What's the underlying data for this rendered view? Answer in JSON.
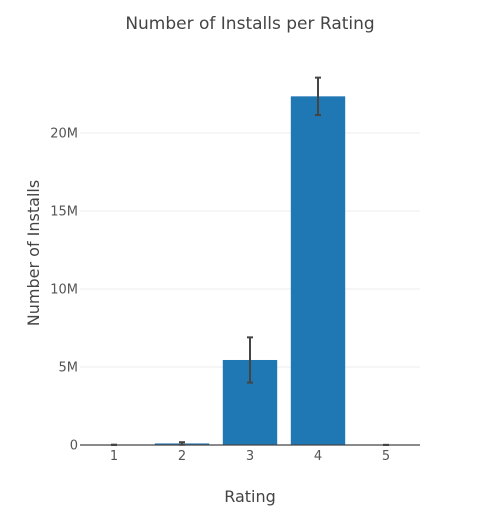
{
  "chart_data": {
    "type": "bar",
    "title": "Number of Installs per Rating",
    "xlabel": "Rating",
    "ylabel": "Number of Installs",
    "categories": [
      "1",
      "2",
      "3",
      "4",
      "5"
    ],
    "values": [
      0,
      100000,
      5450000,
      22350000,
      0
    ],
    "error": [
      20000,
      80000,
      1450000,
      1200000,
      10000
    ],
    "ylim": [
      0,
      25000000
    ],
    "yticks": [
      0,
      5000000,
      10000000,
      15000000,
      20000000
    ],
    "ytick_labels": [
      "0",
      "5M",
      "10M",
      "15M",
      "20M"
    ],
    "grid": true,
    "bar_color": "#1f77b4",
    "error_color": "#444444"
  }
}
